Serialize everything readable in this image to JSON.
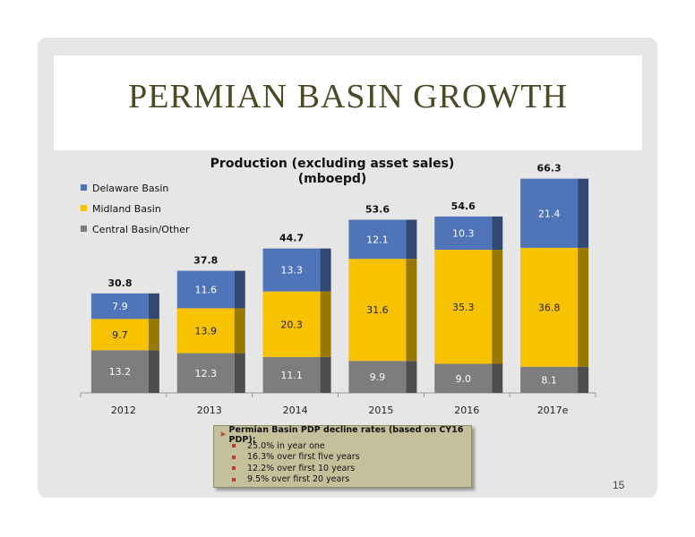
{
  "slide": {
    "title": "PERMIAN BASIN GROWTH",
    "page_number": "15"
  },
  "notes": {
    "heading": "Permian Basin PDP decline rates (based on CY16 PDP):",
    "items": [
      "25.0% in year one",
      "16.3% over first five years",
      "12.2% over first 10 years",
      "9.5% over first 20 years"
    ]
  },
  "colors": {
    "delaware": "#4f74b8",
    "midland": "#f7c200",
    "central": "#7d7d7d",
    "notes_bg": "#c4c09b",
    "title": "#4a4a28"
  },
  "chart_data": {
    "type": "bar",
    "stacked": true,
    "title": "Production (excluding asset sales) (mboepd)",
    "title_lines": [
      "Production (excluding asset sales)",
      "(mboepd)"
    ],
    "categories": [
      "2012",
      "2013",
      "2014",
      "2015",
      "2016",
      "2017e"
    ],
    "series": [
      {
        "name": "Central Basin/Other",
        "values": [
          13.2,
          12.3,
          11.1,
          9.9,
          9.0,
          8.1
        ],
        "color": "#7d7d7d"
      },
      {
        "name": "Midland Basin",
        "values": [
          9.7,
          13.9,
          20.3,
          31.6,
          35.3,
          36.8
        ],
        "color": "#f7c200"
      },
      {
        "name": "Delaware Basin",
        "values": [
          7.9,
          11.6,
          13.3,
          12.1,
          10.3,
          21.4
        ],
        "color": "#4f74b8"
      }
    ],
    "totals": [
      "30.8",
      "37.8",
      "44.7",
      "53.6",
      "54.6",
      "66.3"
    ],
    "value_labels": [
      [
        "13.2",
        "12.3",
        "11.1",
        "9.9",
        "9.0",
        "8.1"
      ],
      [
        "9.7",
        "13.9",
        "20.3",
        "31.6",
        "35.3",
        "36.8"
      ],
      [
        "7.9",
        "11.6",
        "13.3",
        "12.1",
        "10.3",
        "21.4"
      ]
    ],
    "legend": [
      "Delaware Basin",
      "Midland Basin",
      "Central Basin/Other"
    ],
    "legend_position": "top-left",
    "ylim": [
      0,
      70
    ],
    "grid": false
  }
}
